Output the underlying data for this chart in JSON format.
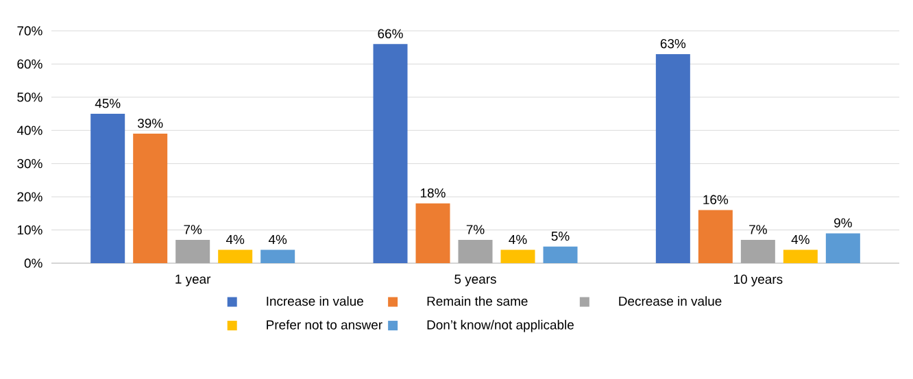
{
  "chart_data": {
    "type": "bar",
    "categories": [
      "1 year",
      "5 years",
      "10 years"
    ],
    "series": [
      {
        "name": "Increase in value",
        "color": "#4472c4",
        "values": [
          45,
          66,
          63
        ],
        "value_labels": [
          "45%",
          "66%",
          "63%"
        ]
      },
      {
        "name": "Remain the same",
        "color": "#ed7d31",
        "values": [
          39,
          18,
          16
        ],
        "value_labels": [
          "39%",
          "18%",
          "16%"
        ]
      },
      {
        "name": "Decrease in value",
        "color": "#a5a5a5",
        "values": [
          7,
          7,
          7
        ],
        "value_labels": [
          "7%",
          "7%",
          "7%"
        ]
      },
      {
        "name": "Prefer not to answer",
        "color": "#ffc000",
        "values": [
          4,
          4,
          4
        ],
        "value_labels": [
          "4%",
          "4%",
          "4%"
        ]
      },
      {
        "name": "Don’t know/not applicable",
        "color": "#5b9bd5",
        "values": [
          4,
          5,
          9
        ],
        "value_labels": [
          "4%",
          "5%",
          "9%"
        ]
      }
    ],
    "ylim": [
      0,
      70
    ],
    "yticks": [
      {
        "value": 0,
        "label": "0%"
      },
      {
        "value": 10,
        "label": "10%"
      },
      {
        "value": 20,
        "label": "20%"
      },
      {
        "value": 30,
        "label": "30%"
      },
      {
        "value": 40,
        "label": "40%"
      },
      {
        "value": 50,
        "label": "50%"
      },
      {
        "value": 60,
        "label": "60%"
      },
      {
        "value": 70,
        "label": "70%"
      }
    ],
    "grid": "y",
    "legend": "bottom"
  }
}
